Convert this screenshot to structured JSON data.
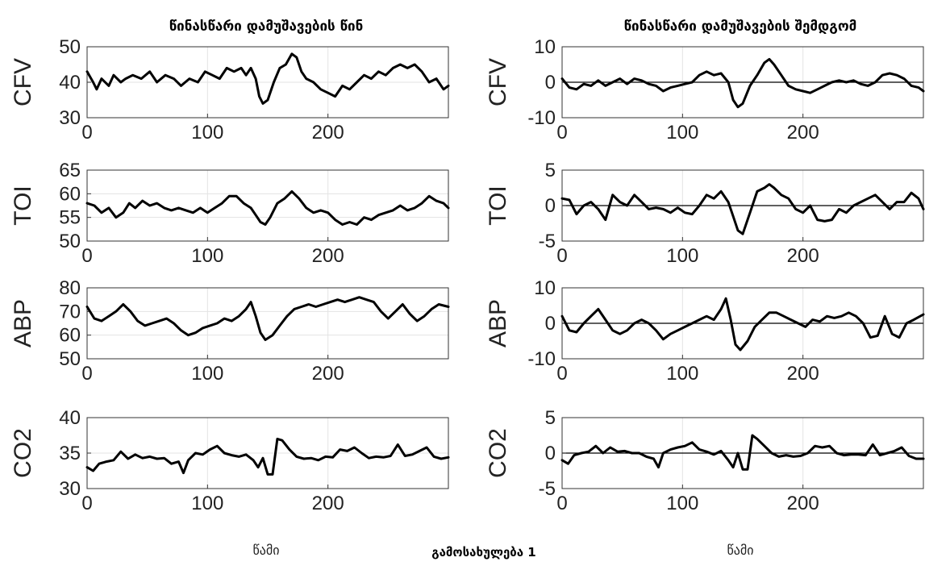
{
  "figure": {
    "left_title": "წინასწარი დამუშავების წინ",
    "right_title": "წინასწარი დამუშავების შემდგომ",
    "xlabel_left": "წამი",
    "xlabel_right": "წამი",
    "caption": "გამოსახულება 1"
  },
  "chart_data": [
    {
      "type": "line",
      "column": "left",
      "row": 0,
      "ylabel": "CFV",
      "xlim": [
        0,
        300
      ],
      "ylim": [
        30,
        50
      ],
      "xticks": [
        0,
        100,
        200
      ],
      "yticks": [
        30,
        40,
        50
      ],
      "grid": true,
      "x": [
        0,
        5,
        8,
        12,
        18,
        22,
        28,
        32,
        38,
        45,
        52,
        58,
        65,
        72,
        78,
        85,
        92,
        98,
        104,
        110,
        116,
        122,
        128,
        132,
        136,
        140,
        143,
        146,
        150,
        155,
        160,
        165,
        170,
        174,
        178,
        182,
        188,
        194,
        200,
        206,
        212,
        218,
        224,
        230,
        236,
        242,
        248,
        254,
        260,
        266,
        272,
        278,
        284,
        290,
        296,
        300
      ],
      "series": [
        {
          "values": [
            43,
            40,
            38,
            41,
            39,
            42,
            40,
            41,
            42,
            41,
            43,
            40,
            42,
            41,
            39,
            41,
            40,
            43,
            42,
            41,
            44,
            43,
            44,
            42,
            44,
            41,
            36,
            34,
            35,
            40,
            44,
            45,
            48,
            47,
            43,
            41,
            40,
            38,
            37,
            36,
            39,
            38,
            40,
            42,
            41,
            43,
            42,
            44,
            45,
            44,
            45,
            43,
            40,
            41,
            38,
            39
          ]
        }
      ]
    },
    {
      "type": "line",
      "column": "left",
      "row": 1,
      "ylabel": "TOI",
      "xlim": [
        0,
        300
      ],
      "ylim": [
        50,
        65
      ],
      "xticks": [
        0,
        100,
        200
      ],
      "yticks": [
        50,
        55,
        60,
        65
      ],
      "grid": true,
      "x": [
        0,
        6,
        12,
        18,
        24,
        30,
        35,
        40,
        46,
        52,
        58,
        64,
        70,
        76,
        82,
        88,
        94,
        100,
        106,
        112,
        118,
        124,
        130,
        136,
        140,
        144,
        148,
        152,
        158,
        164,
        170,
        176,
        182,
        188,
        194,
        200,
        206,
        212,
        218,
        224,
        230,
        236,
        242,
        248,
        254,
        260,
        266,
        272,
        278,
        284,
        290,
        296,
        300
      ],
      "series": [
        {
          "values": [
            58,
            57.5,
            56,
            57,
            55,
            56,
            58,
            57,
            58.5,
            57.5,
            58,
            57,
            56.5,
            57,
            56.5,
            56,
            57,
            56,
            57,
            58,
            59.5,
            59.5,
            58,
            57,
            55.5,
            54,
            53.5,
            55,
            58,
            59,
            60.5,
            59,
            57,
            56,
            56.5,
            56,
            54.5,
            53.5,
            54,
            53.5,
            55,
            54.5,
            55.5,
            56,
            56.5,
            57.5,
            56.5,
            57,
            58,
            59.5,
            58.5,
            58,
            57
          ]
        }
      ]
    },
    {
      "type": "line",
      "column": "left",
      "row": 2,
      "ylabel": "ABP",
      "xlim": [
        0,
        300
      ],
      "ylim": [
        50,
        80
      ],
      "xticks": [
        0,
        100,
        200
      ],
      "yticks": [
        50,
        60,
        70,
        80
      ],
      "grid": true,
      "x": [
        0,
        6,
        12,
        18,
        24,
        30,
        36,
        42,
        48,
        54,
        60,
        66,
        72,
        78,
        84,
        90,
        96,
        102,
        108,
        114,
        120,
        126,
        132,
        136,
        140,
        144,
        148,
        154,
        160,
        166,
        172,
        178,
        184,
        190,
        196,
        202,
        208,
        214,
        220,
        226,
        232,
        238,
        244,
        250,
        256,
        262,
        268,
        274,
        280,
        286,
        292,
        300
      ],
      "series": [
        {
          "values": [
            72,
            67,
            66,
            68,
            70,
            73,
            70,
            66,
            64,
            65,
            66,
            67,
            65,
            62,
            60,
            61,
            63,
            64,
            65,
            67,
            66,
            68,
            71,
            74,
            68,
            61,
            58,
            60,
            64,
            68,
            71,
            72,
            73,
            72,
            73,
            74,
            75,
            74,
            75,
            76,
            75,
            74,
            70,
            67,
            70,
            73,
            69,
            66,
            68,
            71,
            73,
            72
          ]
        }
      ]
    },
    {
      "type": "line",
      "column": "left",
      "row": 3,
      "ylabel": "CO2",
      "xlim": [
        0,
        300
      ],
      "ylim": [
        30,
        40
      ],
      "xticks": [
        0,
        100,
        200
      ],
      "yticks": [
        30,
        35,
        40
      ],
      "grid": true,
      "x": [
        0,
        5,
        10,
        16,
        22,
        28,
        34,
        40,
        46,
        52,
        58,
        64,
        70,
        76,
        80,
        84,
        90,
        96,
        102,
        108,
        114,
        120,
        126,
        132,
        138,
        142,
        146,
        150,
        154,
        158,
        162,
        168,
        174,
        180,
        186,
        192,
        198,
        204,
        210,
        216,
        222,
        228,
        234,
        240,
        246,
        252,
        258,
        264,
        270,
        276,
        282,
        288,
        294,
        300
      ],
      "series": [
        {
          "values": [
            33,
            32.5,
            33.5,
            33.8,
            34,
            35.2,
            34.2,
            34.8,
            34.3,
            34.5,
            34.2,
            34.3,
            33.5,
            33.8,
            32.2,
            34,
            35,
            34.8,
            35.5,
            36,
            35,
            34.7,
            34.5,
            34.8,
            34,
            33,
            34.3,
            32,
            32,
            37,
            36.8,
            35.5,
            34.5,
            34.2,
            34.3,
            34,
            34.5,
            34.4,
            35.5,
            35.3,
            35.8,
            35,
            34.3,
            34.5,
            34.4,
            34.6,
            36.2,
            34.6,
            34.8,
            35.3,
            35.8,
            34.5,
            34.2,
            34.4
          ]
        }
      ]
    },
    {
      "type": "line",
      "column": "right",
      "row": 0,
      "ylabel": "CFV",
      "xlim": [
        0,
        300
      ],
      "ylim": [
        -10,
        10
      ],
      "xticks": [
        0,
        100,
        200
      ],
      "yticks": [
        -10,
        0,
        10
      ],
      "grid": true,
      "x": [
        0,
        6,
        12,
        18,
        24,
        30,
        36,
        42,
        48,
        54,
        60,
        66,
        72,
        78,
        84,
        90,
        96,
        102,
        108,
        114,
        120,
        126,
        132,
        138,
        142,
        146,
        150,
        156,
        162,
        168,
        172,
        176,
        182,
        188,
        194,
        200,
        206,
        212,
        218,
        224,
        230,
        236,
        242,
        248,
        254,
        260,
        266,
        272,
        278,
        284,
        290,
        296,
        300
      ],
      "series": [
        {
          "values": [
            1,
            -1.5,
            -2,
            -0.5,
            -1,
            0.5,
            -1,
            0,
            1,
            -0.5,
            1,
            0.5,
            -0.5,
            -1,
            -2.5,
            -1.5,
            -1,
            -0.5,
            0,
            2,
            3,
            2,
            2.5,
            0,
            -5,
            -7,
            -6,
            -1,
            2,
            5.5,
            6.5,
            5,
            2,
            -1,
            -2,
            -2.5,
            -3,
            -2,
            -1,
            0,
            0.5,
            0,
            0.5,
            -0.5,
            -1,
            0,
            2,
            2.5,
            2,
            1,
            -1,
            -1.5,
            -2.5
          ]
        }
      ]
    },
    {
      "type": "line",
      "column": "right",
      "row": 1,
      "ylabel": "TOI",
      "xlim": [
        0,
        300
      ],
      "ylim": [
        -5,
        5
      ],
      "xticks": [
        0,
        100,
        200
      ],
      "yticks": [
        -5,
        0,
        5
      ],
      "grid": true,
      "x": [
        0,
        6,
        12,
        18,
        24,
        30,
        36,
        42,
        48,
        54,
        60,
        66,
        72,
        78,
        84,
        90,
        96,
        102,
        108,
        114,
        120,
        126,
        132,
        138,
        142,
        146,
        150,
        156,
        162,
        168,
        172,
        176,
        182,
        188,
        194,
        200,
        206,
        212,
        218,
        224,
        230,
        236,
        242,
        248,
        254,
        260,
        266,
        272,
        278,
        284,
        290,
        296,
        300
      ],
      "series": [
        {
          "values": [
            1,
            0.8,
            -1.2,
            0,
            0.5,
            -0.5,
            -2,
            1.5,
            0.5,
            0,
            1.5,
            0.5,
            -0.5,
            -0.3,
            -0.5,
            -1,
            -0.3,
            -1,
            -1.2,
            0,
            1.5,
            1,
            2,
            0.5,
            -1.5,
            -3.5,
            -4,
            -1,
            2,
            2.5,
            3,
            2.5,
            1.5,
            1,
            -0.5,
            -1,
            0,
            -2,
            -2.2,
            -2,
            -0.5,
            -1,
            0,
            0.5,
            1,
            1.5,
            0.5,
            -0.5,
            0.5,
            0.5,
            1.8,
            1,
            -0.5
          ]
        }
      ]
    },
    {
      "type": "line",
      "column": "right",
      "row": 2,
      "ylabel": "ABP",
      "xlim": [
        0,
        300
      ],
      "ylim": [
        -10,
        10
      ],
      "xticks": [
        0,
        100,
        200
      ],
      "yticks": [
        -10,
        0,
        10
      ],
      "grid": true,
      "x": [
        0,
        6,
        12,
        18,
        24,
        30,
        36,
        42,
        48,
        54,
        60,
        66,
        72,
        78,
        84,
        90,
        96,
        102,
        108,
        114,
        120,
        126,
        132,
        136,
        140,
        144,
        148,
        154,
        160,
        166,
        172,
        178,
        184,
        190,
        196,
        202,
        208,
        214,
        220,
        226,
        232,
        238,
        244,
        250,
        256,
        262,
        268,
        274,
        280,
        286,
        292,
        300
      ],
      "series": [
        {
          "values": [
            2,
            -2,
            -2.5,
            0,
            2,
            4,
            1,
            -2,
            -3,
            -2,
            0,
            1,
            0,
            -2,
            -4.5,
            -3,
            -2,
            -1,
            0,
            1,
            2,
            1,
            4,
            7,
            1,
            -6,
            -7.5,
            -5,
            -1,
            1,
            3,
            3,
            2,
            1,
            0,
            -1,
            1,
            0.5,
            2,
            1.5,
            2,
            3,
            2,
            0,
            -4,
            -3.5,
            2,
            -3,
            -4,
            0,
            1,
            2.5
          ]
        }
      ]
    },
    {
      "type": "line",
      "column": "right",
      "row": 3,
      "ylabel": "CO2",
      "xlim": [
        0,
        300
      ],
      "ylim": [
        -5,
        5
      ],
      "xticks": [
        0,
        100,
        200
      ],
      "yticks": [
        -5,
        0,
        5
      ],
      "grid": true,
      "x": [
        0,
        5,
        10,
        16,
        22,
        28,
        34,
        40,
        46,
        52,
        58,
        64,
        70,
        76,
        80,
        84,
        90,
        96,
        102,
        108,
        114,
        120,
        126,
        132,
        138,
        142,
        146,
        150,
        154,
        158,
        162,
        168,
        174,
        180,
        186,
        192,
        198,
        204,
        210,
        216,
        222,
        228,
        234,
        240,
        246,
        252,
        258,
        264,
        270,
        276,
        282,
        288,
        294,
        300
      ],
      "series": [
        {
          "values": [
            -1,
            -1.5,
            -0.3,
            0,
            0.2,
            1,
            0,
            0.8,
            0.2,
            0.3,
            0,
            0,
            -0.5,
            -0.8,
            -2,
            0,
            0.5,
            0.8,
            1,
            1.5,
            0.5,
            0.2,
            -0.2,
            0.3,
            -1,
            -2,
            0,
            -2.3,
            -2.3,
            2.5,
            2,
            1,
            0,
            -0.5,
            -0.3,
            -0.5,
            -0.4,
            0,
            1,
            0.8,
            1,
            0,
            -0.3,
            -0.2,
            -0.2,
            -0.3,
            1.2,
            -0.3,
            0,
            0.3,
            0.8,
            -0.4,
            -0.8,
            -0.8
          ]
        }
      ]
    }
  ]
}
